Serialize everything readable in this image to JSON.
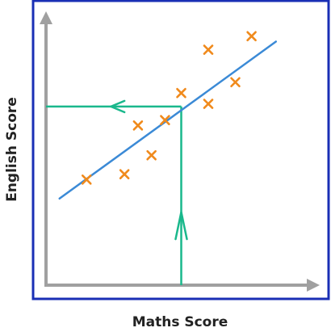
{
  "chart_data": {
    "type": "scatter",
    "title": "",
    "xlabel": "Maths Score",
    "ylabel": "English Score",
    "xlim": [
      0,
      10
    ],
    "ylim": [
      0,
      10
    ],
    "grid": false,
    "legend": "none",
    "series": [
      {
        "points": [
          {
            "x": 1.5,
            "y": 3.9
          },
          {
            "x": 2.9,
            "y": 4.1
          },
          {
            "x": 3.4,
            "y": 5.9
          },
          {
            "x": 3.9,
            "y": 4.8
          },
          {
            "x": 4.4,
            "y": 6.1
          },
          {
            "x": 5.0,
            "y": 7.1
          },
          {
            "x": 6.0,
            "y": 6.7
          },
          {
            "x": 6.0,
            "y": 8.7
          },
          {
            "x": 7.0,
            "y": 7.5
          },
          {
            "x": 7.6,
            "y": 9.2
          }
        ]
      }
    ],
    "line_of_best_fit": {
      "x1": 0.5,
      "y1": 3.2,
      "x2": 8.5,
      "y2": 9.0
    },
    "reading": {
      "x": 5.0,
      "y": 6.6
    },
    "colors": {
      "frame": "#1a2fb5",
      "axes": "#a0a0a0",
      "points": "#f08a1c",
      "fit_line": "#3b8ad6",
      "reading_lines": "#1ab88c"
    }
  }
}
